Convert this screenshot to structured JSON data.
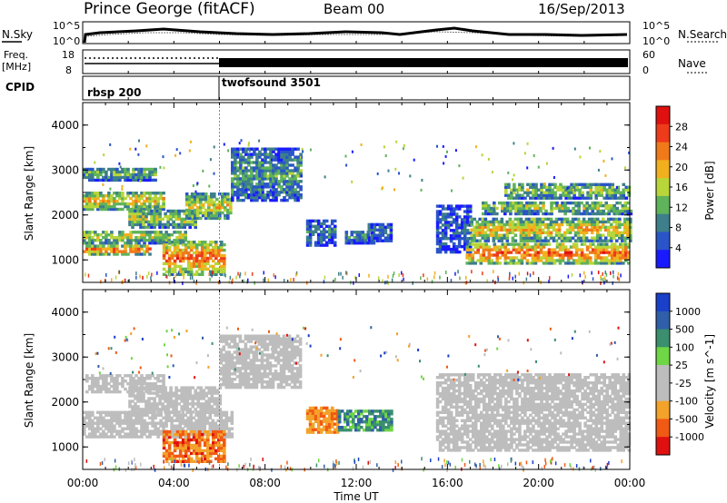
{
  "header": {
    "station": "Prince George (fitACF)",
    "beam": "Beam 00",
    "date": "16/Sep/2013"
  },
  "noise_panel": {
    "left_label": "N.Sky",
    "right_label": "N.Search",
    "left_ticks": [
      "10^5",
      "10^0"
    ],
    "right_ticks": [
      "10^5",
      "10^0"
    ]
  },
  "freq_panel": {
    "left_label_line1": "Freq.",
    "left_label_line2": "[MHz]",
    "right_label": "Nave",
    "left_ticks": [
      "18",
      "8"
    ],
    "right_ticks": [
      "60",
      "0"
    ]
  },
  "cpid_panel": {
    "label": "CPID",
    "programs": [
      {
        "name": "rbsp 200",
        "start_hour": 0,
        "end_hour": 6
      },
      {
        "name": "twofsound 3501",
        "start_hour": 6,
        "end_hour": 24
      }
    ]
  },
  "colors": {
    "power_scale": [
      "#1a1aff",
      "#2a55c8",
      "#3d7f8a",
      "#5fb35a",
      "#b8d63a",
      "#f2b01e",
      "#f07a1a",
      "#ee3b1b",
      "#e01010"
    ],
    "velocity_scale": [
      "#e01010",
      "#f05a14",
      "#f3a22a",
      "#bdbdbd",
      "#bdbdbd",
      "#6fd645",
      "#3b8f6e",
      "#2f5fa8",
      "#1a3fc9"
    ],
    "ground_scatter": "#bdbdbd"
  },
  "chart_data": [
    {
      "type": "heatmap",
      "title": "Power",
      "ylabel": "Slant Range [km]",
      "xlabel": "Time UT",
      "x_ticks": [
        "00:00",
        "04:00",
        "08:00",
        "12:00",
        "16:00",
        "20:00",
        "00:00"
      ],
      "y_ticks": [
        "1000",
        "2000",
        "3000",
        "4000"
      ],
      "ylim": [
        500,
        4500
      ],
      "xlim_hours": [
        0,
        24
      ],
      "colorbar": {
        "label": "Power [dB]",
        "ticks": [
          "28",
          "24",
          "20",
          "16",
          "12",
          "8",
          "4"
        ],
        "range": [
          0,
          32
        ]
      },
      "bands": [
        {
          "t0": 0.0,
          "t1": 3.0,
          "r0": 1100,
          "r1": 1300,
          "v": 26
        },
        {
          "t0": 0.0,
          "t1": 4.5,
          "r0": 1350,
          "r1": 1650,
          "v": 17
        },
        {
          "t0": 0.0,
          "t1": 3.5,
          "r0": 2100,
          "r1": 2500,
          "v": 20
        },
        {
          "t0": 0.0,
          "t1": 3.2,
          "r0": 2750,
          "r1": 3050,
          "v": 13
        },
        {
          "t0": 2.0,
          "t1": 5.0,
          "r0": 1700,
          "r1": 2100,
          "v": 17
        },
        {
          "t0": 3.5,
          "t1": 6.2,
          "r0": 650,
          "r1": 1400,
          "v": 25
        },
        {
          "t0": 4.5,
          "t1": 6.5,
          "r0": 1900,
          "r1": 2450,
          "v": 19
        },
        {
          "t0": 6.5,
          "t1": 9.5,
          "r0": 2300,
          "r1": 3450,
          "v": 11
        },
        {
          "t0": 9.8,
          "t1": 11.0,
          "r0": 1300,
          "r1": 1850,
          "v": 8
        },
        {
          "t0": 11.5,
          "t1": 12.8,
          "r0": 1350,
          "r1": 1650,
          "v": 9
        },
        {
          "t0": 12.5,
          "t1": 13.5,
          "r0": 1400,
          "r1": 1800,
          "v": 7
        },
        {
          "t0": 15.5,
          "t1": 17.0,
          "r0": 1150,
          "r1": 2200,
          "v": 6
        },
        {
          "t0": 16.8,
          "t1": 24.0,
          "r0": 900,
          "r1": 1350,
          "v": 26
        },
        {
          "t0": 17.0,
          "t1": 24.0,
          "r0": 1400,
          "r1": 1900,
          "v": 20
        },
        {
          "t0": 17.5,
          "t1": 24.0,
          "r0": 2000,
          "r1": 2300,
          "v": 16
        },
        {
          "t0": 18.5,
          "t1": 24.0,
          "r0": 2350,
          "r1": 2700,
          "v": 14
        }
      ]
    },
    {
      "type": "heatmap",
      "title": "Velocity",
      "ylabel": "Slant Range [km]",
      "xlabel": "Time UT",
      "x_ticks": [
        "00:00",
        "04:00",
        "08:00",
        "12:00",
        "16:00",
        "20:00",
        "00:00"
      ],
      "y_ticks": [
        "1000",
        "2000",
        "3000",
        "4000"
      ],
      "ylim": [
        500,
        4500
      ],
      "xlim_hours": [
        0,
        24
      ],
      "colorbar": {
        "label": "Velocity [m s^-1]",
        "ticks": [
          "1000",
          "500",
          "100",
          "25",
          "-25",
          "-100",
          "-500",
          "-1000"
        ]
      },
      "bands": [
        {
          "t0": 0.0,
          "t1": 6.5,
          "r0": 1200,
          "r1": 1750,
          "cls": "gs"
        },
        {
          "t0": 0.0,
          "t1": 3.5,
          "r0": 2200,
          "r1": 2600,
          "cls": "gs"
        },
        {
          "t0": 2.0,
          "t1": 6.0,
          "r0": 1750,
          "r1": 2300,
          "cls": "gs"
        },
        {
          "t0": 3.5,
          "t1": 6.2,
          "r0": 650,
          "r1": 1350,
          "cls": "neg"
        },
        {
          "t0": 6.0,
          "t1": 9.5,
          "r0": 2300,
          "r1": 3450,
          "cls": "gs"
        },
        {
          "t0": 9.8,
          "t1": 11.2,
          "r0": 1300,
          "r1": 1850,
          "cls": "negweak"
        },
        {
          "t0": 11.2,
          "t1": 13.5,
          "r0": 1350,
          "r1": 1800,
          "cls": "pos"
        },
        {
          "t0": 15.5,
          "t1": 24.0,
          "r0": 900,
          "r1": 2600,
          "cls": "gs"
        }
      ]
    }
  ]
}
